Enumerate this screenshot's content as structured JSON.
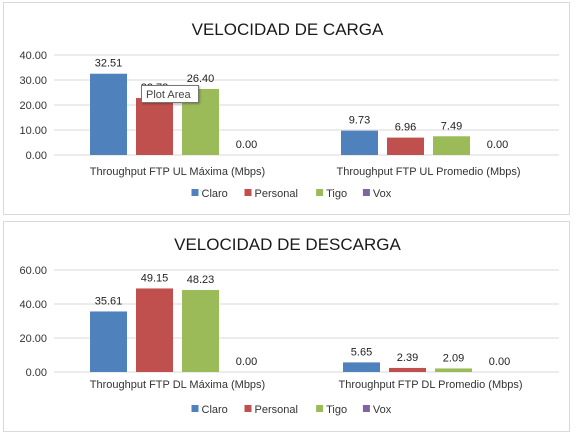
{
  "colors": {
    "Claro": "#4f81bd",
    "Personal": "#c0504d",
    "Tigo": "#9bbb59",
    "Vox": "#8064a2"
  },
  "tooltip": {
    "text": "Plot Area"
  },
  "chart_data": [
    {
      "type": "bar",
      "title": "VELOCIDAD DE CARGA",
      "categories": [
        "Throughput FTP UL Máxima (Mbps)",
        "Throughput FTP UL Promedio (Mbps)"
      ],
      "series": [
        {
          "name": "Claro",
          "values": [
            32.51,
            9.73
          ]
        },
        {
          "name": "Personal",
          "values": [
            22.78,
            6.96
          ]
        },
        {
          "name": "Tigo",
          "values": [
            26.4,
            7.49
          ]
        },
        {
          "name": "Vox",
          "values": [
            0.0,
            0.0
          ]
        }
      ],
      "ylim": [
        0,
        40
      ],
      "yticks": [
        "0.00",
        "10.00",
        "20.00",
        "30.00",
        "40.00"
      ],
      "grid": true,
      "legend": "bottom"
    },
    {
      "type": "bar",
      "title": "VELOCIDAD DE DESCARGA",
      "categories": [
        "Throughput FTP DL Máxima (Mbps)",
        "Throughput FTP DL Promedio (Mbps)"
      ],
      "series": [
        {
          "name": "Claro",
          "values": [
            35.61,
            5.65
          ]
        },
        {
          "name": "Personal",
          "values": [
            49.15,
            2.39
          ]
        },
        {
          "name": "Tigo",
          "values": [
            48.23,
            2.09
          ]
        },
        {
          "name": "Vox",
          "values": [
            0.0,
            0.0
          ]
        }
      ],
      "ylim": [
        0,
        60
      ],
      "yticks": [
        "0.00",
        "20.00",
        "40.00",
        "60.00"
      ],
      "grid": true,
      "legend": "bottom"
    }
  ]
}
